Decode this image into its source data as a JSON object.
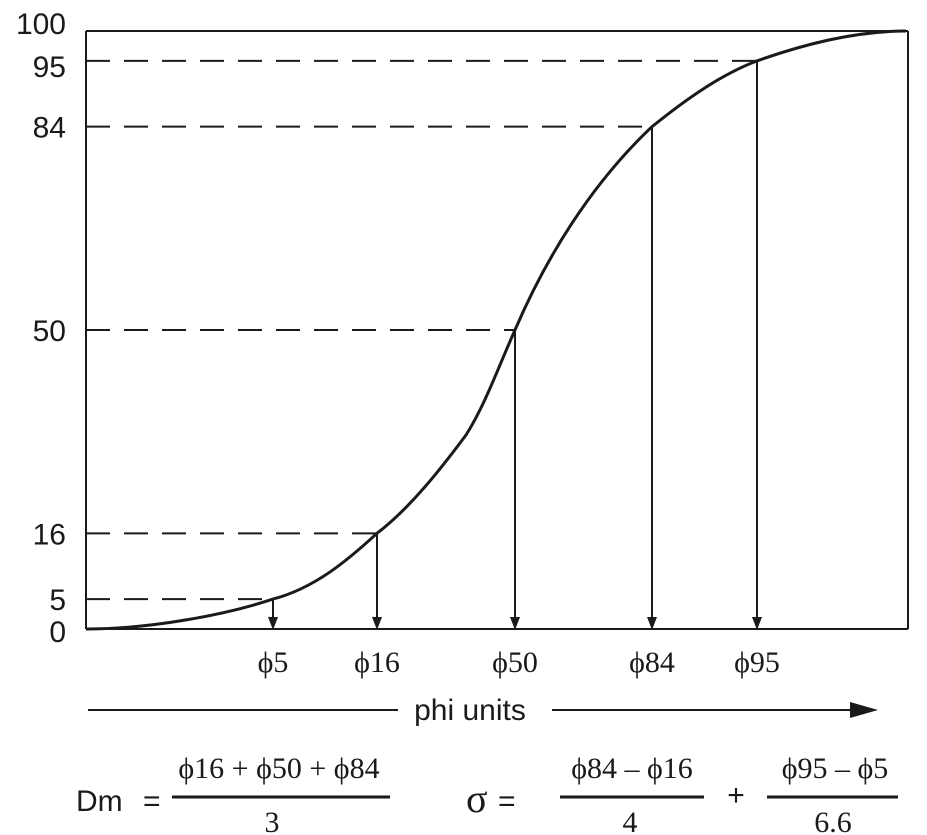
{
  "chart_data": {
    "type": "line",
    "title": "",
    "xlabel": "phi units",
    "ylabel": "",
    "ylim": [
      0,
      100
    ],
    "y_ticks": [
      "0",
      "5",
      "16",
      "50",
      "84",
      "95",
      "100"
    ],
    "series": [
      {
        "values_y": [
          0,
          5,
          16,
          50,
          84,
          95,
          100
        ]
      }
    ],
    "percentiles": [
      {
        "percent": 5,
        "label": "ϕ5"
      },
      {
        "percent": 16,
        "label": "ϕ16"
      },
      {
        "percent": 50,
        "label": "ϕ50"
      },
      {
        "percent": 84,
        "label": "ϕ84"
      },
      {
        "percent": 95,
        "label": "ϕ95"
      }
    ]
  },
  "formulas": {
    "dm": {
      "lhs": "Dm",
      "equals": "=",
      "numerator": "ϕ16 + ϕ50 + ϕ84",
      "denominator": "3"
    },
    "sigma": {
      "lhs": "σ",
      "equals": "=",
      "term1_numerator": "ϕ84 – ϕ16",
      "term1_denominator": "4",
      "plus": "+",
      "term2_numerator": "ϕ95 – ϕ5",
      "term2_denominator": "6.6"
    }
  }
}
